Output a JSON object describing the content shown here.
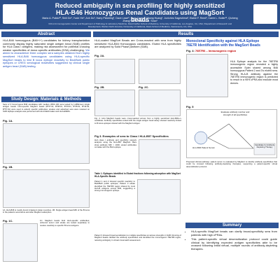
{
  "header": {
    "title": "Reduced ambiguity in sera profiling for highly sensitized HLA-B46 Homozygous Renal Candidates using MagSort beads",
    "authors": "Maria A. Pulido¹², Shili Ge¹, Yuxin Yin¹, Anh Du¹, Harry Pickering¹, Dave Lowe³, Sean Carey³, Yihong Huang¹, Junichiro Sageshima², Elaine F. Reed¹, Carrie L. Butler¹², Qiuheng Zhang¹, and Rebecca S. Sosa¹",
    "affiliations": "¹UCLA Immunogenetics Center and Department of Pathology & Laboratory Medicine, David Geffen School of Medicine, University of California, Los Angeles, CA, USA; ²Department of Research and Development, Werfen North America; ³University of California, Davis School of Medicine, Sacramento, CA, USA"
  },
  "abstract": {
    "heading": "Abstract",
    "text": "HLA-B46 homozygous (B46+/+) candidates for kidney transplantation commonly display highly saturated single antigen bead (SAB) profiles for HLA Class I antigens, making risk assessment for potential crossing weaker specificities of donor-specific antibodies (DSA) challenging.",
    "aim": "We aimed to characterize three complex sera samples obtained from highly sensitized HLA-B46 homozygous candidates using HLA-specific MagSort beads to test B locus epitope reactivity to Bw4/Bw6 public epitopes or CREG serological reactivities suggested by clinical single antigen bead (SAB) testing."
  },
  "methods": {
    "heading": "Study Design: Materials & Methods",
    "text": "Sera of 3 homozygous B46 candidates with median cPRA 100 were tested by LABScreen single antigen beads. HLA-specific MagSort beads (B*07:02, B*08:01, B*15:01, B*35:01, B*44:02, B*57:01) were used to adsorb specific antibodies; eluates and adsorbed sera were retested on SAB. Epitope analysis was performed with HLA Matchmaker and HLA-EMMA.",
    "figures": [
      "Fig. 1A.",
      "Fig. 1B.",
      "Fig. 1C."
    ],
    "caption_1a": "1A. HLA-B46 is mostly found in Eastern Asian countries. 1B. Single antigen bead MFI of the B locus in the patients sera before and after MagSort adsorption.",
    "caption_1c": "1C. MagSort beads bind HLA-specific antibodies; unbound serum and eluate are tested separately to resolve reactivity to specific B locus antigens."
  },
  "results": {
    "heading": "Results",
    "intro": "HLA-coated MagSort Beads are Cross-reacted with sera from highly sensitized HLA-B46 Homozygous candidates. Eluted HLA specificities are analyzed by Solid Phase platform (SAB).",
    "figures": [
      "Fig. 2A.",
      "Fig. 2B.",
      "Fig. 2C."
    ],
    "caption_2": "Fig. 2. HLA MagSort beads were cross-reacted across from a highly sensitized HLA-B46+/+ candidate. Antibody specificities eluted with the single antigen bead assay showed reactivity limited to B locus epitopes shared with the MagSort antigen.",
    "figure_3_title": "Fig 3. Examples of sera to Class I HLA-B57 Specificities",
    "fig3_text": "HLA class I antibody and specificity network analysis using the HLA-B57 MagSort. Bars show antibody MFI > 1000; eluted antibodies correlate with the Bw4 epitope.",
    "table_1_title": "Table 1. Epitopes identified in Eluted fractions following adsorption with MagSort HLA-Specific Beads",
    "table_text": "Patient 1 and 2 showed specific reactivity to Bw4/Bw6 public epitopes; Patient 3 eluate identified the 76E7R6 region shared by most HLA-B antigens except B46, suggesting a strong immunogenic epitope.",
    "caption_table": "Patient 3 showed broad sensitization to multiple specificities at various strengths in SAB. Running of MagSort beads clarified the antibody specificities and identified the immunogenic 76E7R6 region, reducing ambiguity in virtual crossmatch assessment."
  },
  "right": {
    "heading_1": "Monoclonal Specificity against HLA Epitope",
    "heading_2": "76E7R Identification with the MagSort Beads",
    "figure_4_label": "Fig. 4:",
    "figure_4_region": "76E7R6 – Immunogenic region",
    "epitope_text": "HLA Epitope analysis for the 76E7R6 immunogenic region revealed a highly accessible Eplet shared among B46 homozygous Patient 2 and 3's eluted sera. Strong HLA-B antibody against the 76E7R6 immunogenic region is predicted to result in a 95% cPRA and exclude most donors.",
    "figure_5_label": "Fig. 5",
    "diagram": [
      "Evaluate antibody number and strength of all specificities",
      "HLA-B46 Patient Serum",
      "Candidate for Antibody Depleting Therapy"
    ],
    "caption_5": "Proposed clinical pathway: patient serum is evaluated by MagSort to identify antibody specificities that could be crossed following antibody-depleting therapies, supporting a patient-specific virtual desensitization protocol."
  },
  "summary": {
    "heading": "Summary",
    "bullets": [
      "HLA-specific MagSort beads can clarify broad-specificity sera from patients with high cPRAs.",
      "This patient-specific virtual desensitization protocol could guide clinical by identifying expected antigen specificities able to be crossed following initial virtual, multiple rounds of antibody-depleting therapies."
    ]
  }
}
